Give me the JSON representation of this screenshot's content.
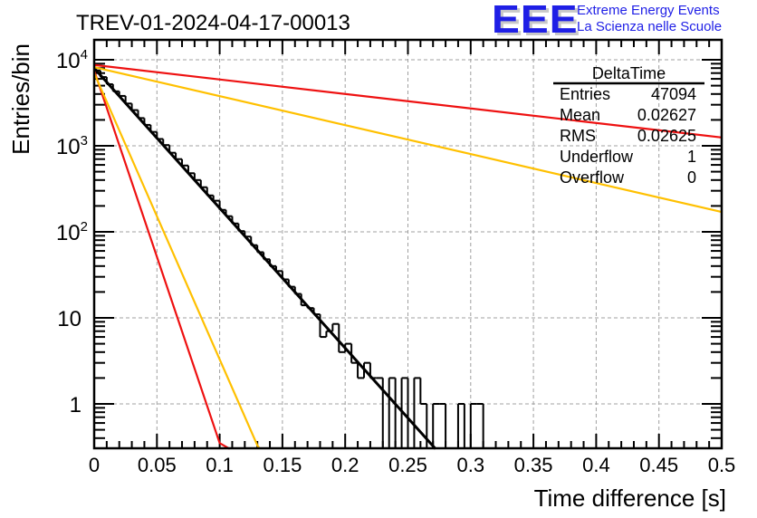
{
  "logo": {
    "mark": "EEE",
    "line1": "Extreme Energy Events",
    "line2": "La Scienza nelle Scuole",
    "color": "#1f1fe6"
  },
  "chart_data": {
    "type": "bar",
    "subtype": "histogram",
    "title": "TREV-01-2024-04-17-00013",
    "xlabel": "Time difference [s]",
    "ylabel": "Entries/bin",
    "xlim": [
      0,
      0.5
    ],
    "ylim": [
      0.3,
      15000
    ],
    "yscale": "log",
    "grid": true,
    "x_ticks": [
      "0",
      "0.05",
      "0.1",
      "0.15",
      "0.2",
      "0.25",
      "0.3",
      "0.35",
      "0.4",
      "0.45",
      "0.5"
    ],
    "x_tick_values": [
      0,
      0.05,
      0.1,
      0.15,
      0.2,
      0.25,
      0.3,
      0.35,
      0.4,
      0.45,
      0.5
    ],
    "y_ticks": [
      {
        "value": 10000,
        "base": "10",
        "exp": "4"
      },
      {
        "value": 1000,
        "base": "10",
        "exp": "3"
      },
      {
        "value": 100,
        "base": "10",
        "exp": "2"
      },
      {
        "value": 10,
        "base": "10",
        "exp": ""
      },
      {
        "value": 1,
        "base": "1",
        "exp": ""
      }
    ],
    "bin_width": 0.005,
    "histogram": {
      "name": "DeltaTime",
      "color": "#000000",
      "bin_low_edges_start": 0,
      "values": [
        7500,
        6300,
        5200,
        4300,
        3800,
        3100,
        2600,
        2100,
        1750,
        1450,
        1200,
        1020,
        830,
        700,
        590,
        480,
        400,
        330,
        265,
        230,
        180,
        152,
        125,
        102,
        88,
        70,
        58,
        48,
        40,
        35,
        28,
        23,
        19,
        14,
        13,
        11,
        6,
        7,
        8.5,
        4,
        5,
        3,
        2,
        3,
        2,
        2,
        0,
        2,
        0,
        2,
        0,
        2,
        1,
        0,
        1,
        1,
        0,
        0,
        1,
        0,
        1,
        1,
        0,
        0,
        0,
        0,
        0,
        0,
        0,
        0,
        0,
        0,
        0,
        0,
        0,
        0,
        0,
        0,
        0,
        0,
        0,
        0,
        0,
        0,
        0,
        0,
        0,
        0,
        0,
        0,
        0,
        0,
        0,
        0,
        0,
        0,
        0,
        0,
        0,
        0
      ]
    },
    "fits": [
      {
        "name": "fit-black",
        "color": "#000000",
        "points": [
          [
            0,
            8000
          ],
          [
            0.272,
            0.3
          ]
        ]
      },
      {
        "name": "fit-red-steep",
        "color": "#ee1111",
        "points": [
          [
            0,
            7500
          ],
          [
            0.1,
            0.35
          ],
          [
            0.108,
            0.3
          ]
        ]
      },
      {
        "name": "fit-yellow-steep",
        "color": "#ffc000",
        "points": [
          [
            0,
            7000
          ],
          [
            0.13,
            0.33
          ],
          [
            0.132,
            0.3
          ]
        ]
      },
      {
        "name": "fit-red-shallow",
        "color": "#ee1111",
        "points": [
          [
            0,
            8700
          ],
          [
            0.5,
            1250
          ]
        ]
      },
      {
        "name": "fit-yellow-shallow",
        "color": "#ffc000",
        "points": [
          [
            0,
            8200
          ],
          [
            0.5,
            170
          ]
        ]
      }
    ],
    "stats_box": {
      "title": "DeltaTime",
      "rows": [
        {
          "label": "Entries",
          "value": "47094"
        },
        {
          "label": "Mean",
          "value": "0.02627"
        },
        {
          "label": "RMS",
          "value": "0.02625"
        },
        {
          "label": "Underflow",
          "value": "1"
        },
        {
          "label": "Overflow",
          "value": "0"
        }
      ]
    }
  }
}
